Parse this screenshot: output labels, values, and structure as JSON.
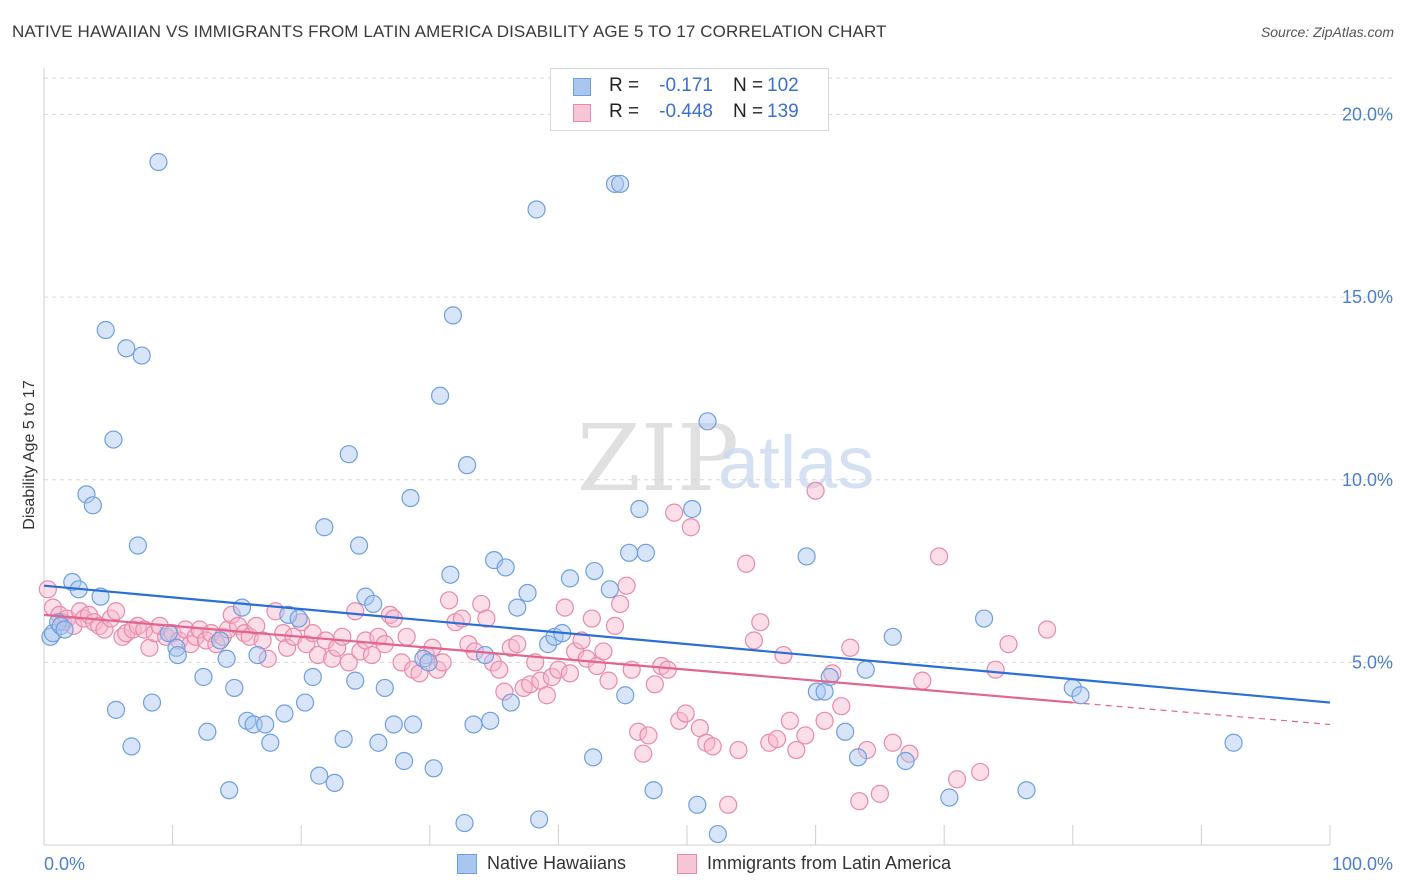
{
  "title": "NATIVE HAWAIIAN VS IMMIGRANTS FROM LATIN AMERICA DISABILITY AGE 5 TO 17 CORRELATION CHART",
  "source": "Source: ZipAtlas.com",
  "watermark": {
    "zip": "ZIP",
    "atlas": "atlas"
  },
  "colors": {
    "blue_fill": "#a9c6ef",
    "blue_stroke": "#6f9fe0",
    "blue_line": "#2a6fd6",
    "pink_fill": "#f6b6cb",
    "pink_stroke": "#e98aa8",
    "pink_line": "#e2648f",
    "grid": "#d9d9d9",
    "axis_text": "#4a7fd0"
  },
  "legend": {
    "rows": [
      {
        "r_label": "R =",
        "r_value": "-0.171",
        "n_label": "N =",
        "n_value": "102"
      },
      {
        "r_label": "R =",
        "r_value": "-0.448",
        "n_label": "N =",
        "n_value": "139"
      }
    ]
  },
  "bottom_legend": {
    "native": "Native Hawaiians",
    "latin": "Immigrants from Latin America"
  },
  "chart_data": {
    "type": "scatter",
    "title": "NATIVE HAWAIIAN VS IMMIGRANTS FROM LATIN AMERICA DISABILITY AGE 5 TO 17 CORRELATION CHART",
    "xlabel": "",
    "ylabel": "Disability Age 5 to 17",
    "xlim": [
      0,
      100
    ],
    "ylim": [
      0,
      21
    ],
    "x_tick_labels": [
      "0.0%",
      "100.0%"
    ],
    "y_ticks": [
      5,
      10,
      15,
      20
    ],
    "y_tick_labels": [
      "5.0%",
      "10.0%",
      "15.0%",
      "20.0%"
    ],
    "grid": true,
    "legend_position": "top-center",
    "series": [
      {
        "name": "Native Hawaiians",
        "r": -0.171,
        "n": 102,
        "trend": {
          "x": [
            0,
            100
          ],
          "y": [
            7.1,
            3.9
          ]
        },
        "points": [
          [
            0.5,
            5.7
          ],
          [
            0.7,
            5.8
          ],
          [
            1.1,
            6.1
          ],
          [
            1.3,
            6.0
          ],
          [
            1.6,
            5.9
          ],
          [
            2.2,
            7.2
          ],
          [
            2.7,
            7.0
          ],
          [
            3.3,
            9.6
          ],
          [
            3.8,
            9.3
          ],
          [
            4.4,
            6.8
          ],
          [
            4.8,
            14.1
          ],
          [
            5.4,
            11.1
          ],
          [
            5.6,
            3.7
          ],
          [
            6.4,
            13.6
          ],
          [
            6.8,
            2.7
          ],
          [
            7.3,
            8.2
          ],
          [
            7.6,
            13.4
          ],
          [
            8.4,
            3.9
          ],
          [
            8.9,
            18.7
          ],
          [
            9.7,
            5.8
          ],
          [
            10.3,
            5.4
          ],
          [
            10.4,
            5.2
          ],
          [
            12.4,
            4.6
          ],
          [
            12.7,
            3.1
          ],
          [
            13.7,
            5.6
          ],
          [
            14.2,
            5.1
          ],
          [
            14.4,
            1.5
          ],
          [
            14.8,
            4.3
          ],
          [
            15.4,
            6.5
          ],
          [
            15.8,
            3.4
          ],
          [
            16.3,
            3.3
          ],
          [
            16.6,
            5.2
          ],
          [
            17.2,
            3.3
          ],
          [
            17.6,
            2.8
          ],
          [
            18.7,
            3.6
          ],
          [
            19.0,
            6.3
          ],
          [
            19.8,
            6.2
          ],
          [
            20.3,
            3.9
          ],
          [
            20.9,
            4.6
          ],
          [
            21.4,
            1.9
          ],
          [
            21.8,
            8.7
          ],
          [
            22.6,
            1.7
          ],
          [
            23.3,
            2.9
          ],
          [
            23.7,
            10.7
          ],
          [
            24.2,
            4.5
          ],
          [
            24.5,
            8.2
          ],
          [
            25.0,
            6.8
          ],
          [
            25.6,
            6.6
          ],
          [
            26.0,
            2.8
          ],
          [
            26.5,
            4.3
          ],
          [
            27.2,
            3.3
          ],
          [
            28.0,
            2.3
          ],
          [
            28.5,
            9.5
          ],
          [
            28.7,
            3.3
          ],
          [
            29.5,
            5.1
          ],
          [
            29.9,
            5.0
          ],
          [
            30.3,
            2.1
          ],
          [
            30.8,
            12.3
          ],
          [
            31.6,
            7.4
          ],
          [
            31.8,
            14.5
          ],
          [
            32.9,
            10.4
          ],
          [
            32.7,
            0.6
          ],
          [
            33.4,
            3.3
          ],
          [
            34.3,
            5.2
          ],
          [
            34.7,
            3.4
          ],
          [
            35.0,
            7.8
          ],
          [
            35.9,
            7.6
          ],
          [
            36.3,
            3.9
          ],
          [
            36.8,
            6.5
          ],
          [
            37.6,
            6.9
          ],
          [
            38.3,
            17.4
          ],
          [
            38.5,
            0.7
          ],
          [
            39.2,
            5.5
          ],
          [
            39.7,
            5.7
          ],
          [
            40.3,
            5.8
          ],
          [
            40.9,
            7.3
          ],
          [
            42.7,
            2.4
          ],
          [
            42.8,
            7.5
          ],
          [
            44.0,
            7.0
          ],
          [
            44.4,
            18.1
          ],
          [
            44.8,
            18.1
          ],
          [
            45.2,
            4.1
          ],
          [
            45.5,
            8.0
          ],
          [
            46.3,
            9.2
          ],
          [
            46.8,
            8.0
          ],
          [
            47.4,
            1.5
          ],
          [
            50.4,
            9.2
          ],
          [
            50.8,
            1.1
          ],
          [
            51.6,
            11.6
          ],
          [
            52.4,
            0.3
          ],
          [
            59.3,
            7.9
          ],
          [
            60.1,
            4.2
          ],
          [
            60.7,
            4.2
          ],
          [
            61.1,
            4.6
          ],
          [
            62.3,
            3.1
          ],
          [
            63.3,
            2.4
          ],
          [
            63.9,
            4.8
          ],
          [
            66.0,
            5.7
          ],
          [
            67.0,
            2.3
          ],
          [
            70.4,
            1.3
          ],
          [
            73.1,
            6.2
          ],
          [
            76.4,
            1.5
          ],
          [
            80.0,
            4.3
          ],
          [
            80.6,
            4.1
          ],
          [
            92.5,
            2.8
          ]
        ]
      },
      {
        "name": "Immigrants from Latin America",
        "r": -0.448,
        "n": 139,
        "trend": {
          "x": [
            0,
            80
          ],
          "y": [
            6.3,
            3.9
          ]
        },
        "trend_dashed": {
          "x": [
            80,
            100
          ],
          "y": [
            3.9,
            3.3
          ]
        },
        "points": [
          [
            0.3,
            7.0
          ],
          [
            0.7,
            6.5
          ],
          [
            1.2,
            6.3
          ],
          [
            1.5,
            6.1
          ],
          [
            1.8,
            6.2
          ],
          [
            2.3,
            6.0
          ],
          [
            2.8,
            6.4
          ],
          [
            3.1,
            6.2
          ],
          [
            3.5,
            6.3
          ],
          [
            3.9,
            6.1
          ],
          [
            4.3,
            6.0
          ],
          [
            4.7,
            5.9
          ],
          [
            5.2,
            6.2
          ],
          [
            5.6,
            6.4
          ],
          [
            6.1,
            5.7
          ],
          [
            6.4,
            5.8
          ],
          [
            6.9,
            5.9
          ],
          [
            7.3,
            6.0
          ],
          [
            7.8,
            5.9
          ],
          [
            8.2,
            5.4
          ],
          [
            8.6,
            5.8
          ],
          [
            9.0,
            6.0
          ],
          [
            9.5,
            5.7
          ],
          [
            10.0,
            5.8
          ],
          [
            10.5,
            5.6
          ],
          [
            11.0,
            5.9
          ],
          [
            11.4,
            5.5
          ],
          [
            11.8,
            5.7
          ],
          [
            12.1,
            5.9
          ],
          [
            12.6,
            5.6
          ],
          [
            13.0,
            5.8
          ],
          [
            13.4,
            5.5
          ],
          [
            13.9,
            5.7
          ],
          [
            14.3,
            5.9
          ],
          [
            14.6,
            6.3
          ],
          [
            15.1,
            6.0
          ],
          [
            15.6,
            5.8
          ],
          [
            16.0,
            5.7
          ],
          [
            16.5,
            6.0
          ],
          [
            17.0,
            5.6
          ],
          [
            17.4,
            5.1
          ],
          [
            18.0,
            6.4
          ],
          [
            18.6,
            5.8
          ],
          [
            18.9,
            5.4
          ],
          [
            19.4,
            5.7
          ],
          [
            20.0,
            6.1
          ],
          [
            20.4,
            5.5
          ],
          [
            20.9,
            5.8
          ],
          [
            21.3,
            5.2
          ],
          [
            21.9,
            5.6
          ],
          [
            22.4,
            5.1
          ],
          [
            22.8,
            5.4
          ],
          [
            23.2,
            5.7
          ],
          [
            23.7,
            5.0
          ],
          [
            24.2,
            6.4
          ],
          [
            24.6,
            5.3
          ],
          [
            25.0,
            5.6
          ],
          [
            25.5,
            5.2
          ],
          [
            26.0,
            5.7
          ],
          [
            26.5,
            5.5
          ],
          [
            26.9,
            6.3
          ],
          [
            27.2,
            6.2
          ],
          [
            27.8,
            5.0
          ],
          [
            28.2,
            5.7
          ],
          [
            28.7,
            4.8
          ],
          [
            29.2,
            4.7
          ],
          [
            29.7,
            5.2
          ],
          [
            30.2,
            5.4
          ],
          [
            30.6,
            4.8
          ],
          [
            31.0,
            5.0
          ],
          [
            31.5,
            6.7
          ],
          [
            32.0,
            6.1
          ],
          [
            32.5,
            6.2
          ],
          [
            33.0,
            5.5
          ],
          [
            33.5,
            5.3
          ],
          [
            34.0,
            6.6
          ],
          [
            34.4,
            6.2
          ],
          [
            34.9,
            5.0
          ],
          [
            35.4,
            4.8
          ],
          [
            35.8,
            4.2
          ],
          [
            36.3,
            5.4
          ],
          [
            36.8,
            5.5
          ],
          [
            37.3,
            4.3
          ],
          [
            37.8,
            4.4
          ],
          [
            38.2,
            5.0
          ],
          [
            38.6,
            4.5
          ],
          [
            39.1,
            4.1
          ],
          [
            39.5,
            4.6
          ],
          [
            40.0,
            4.8
          ],
          [
            40.5,
            6.5
          ],
          [
            40.9,
            4.7
          ],
          [
            41.3,
            5.3
          ],
          [
            41.8,
            5.6
          ],
          [
            42.2,
            5.1
          ],
          [
            42.6,
            6.2
          ],
          [
            43.0,
            4.9
          ],
          [
            43.5,
            5.3
          ],
          [
            43.9,
            4.5
          ],
          [
            44.4,
            6.0
          ],
          [
            44.8,
            6.6
          ],
          [
            45.3,
            7.1
          ],
          [
            45.7,
            4.8
          ],
          [
            46.2,
            3.1
          ],
          [
            46.6,
            2.5
          ],
          [
            47.0,
            3.0
          ],
          [
            47.5,
            4.4
          ],
          [
            48.0,
            4.9
          ],
          [
            48.5,
            4.8
          ],
          [
            49.0,
            9.1
          ],
          [
            49.4,
            3.4
          ],
          [
            49.9,
            3.6
          ],
          [
            50.3,
            8.7
          ],
          [
            51.0,
            3.2
          ],
          [
            51.5,
            2.8
          ],
          [
            52.0,
            2.7
          ],
          [
            53.2,
            1.1
          ],
          [
            54.0,
            2.6
          ],
          [
            54.6,
            7.7
          ],
          [
            55.2,
            5.6
          ],
          [
            55.7,
            6.1
          ],
          [
            56.4,
            2.8
          ],
          [
            57.0,
            2.9
          ],
          [
            57.5,
            5.2
          ],
          [
            58.0,
            3.4
          ],
          [
            58.5,
            2.6
          ],
          [
            59.2,
            3.0
          ],
          [
            60.0,
            9.7
          ],
          [
            60.7,
            3.4
          ],
          [
            61.3,
            4.7
          ],
          [
            62.0,
            3.8
          ],
          [
            62.7,
            5.4
          ],
          [
            63.4,
            1.2
          ],
          [
            64.0,
            2.6
          ],
          [
            65.0,
            1.4
          ],
          [
            66.0,
            2.8
          ],
          [
            67.3,
            2.5
          ],
          [
            68.3,
            4.5
          ],
          [
            69.6,
            7.9
          ],
          [
            71.0,
            1.8
          ],
          [
            72.8,
            2.0
          ],
          [
            74.0,
            4.8
          ],
          [
            75.0,
            5.5
          ],
          [
            78.0,
            5.9
          ]
        ]
      }
    ]
  }
}
